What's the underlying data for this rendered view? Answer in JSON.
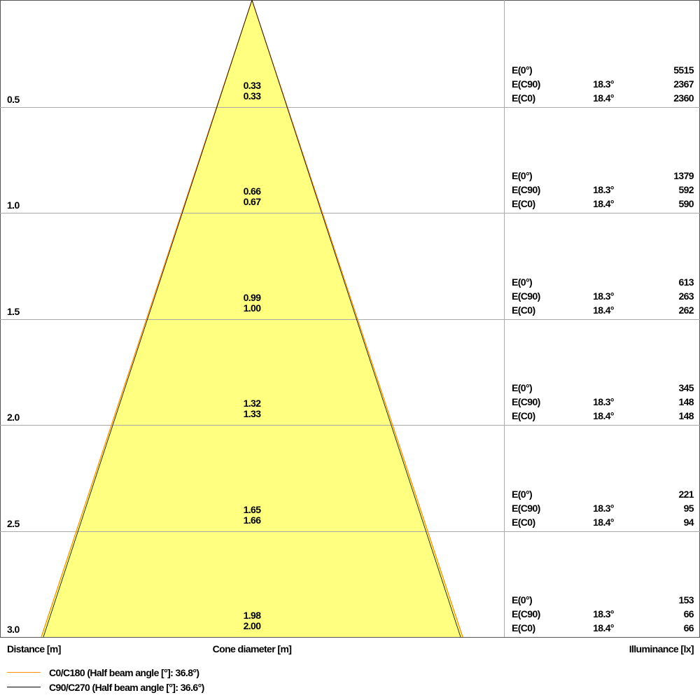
{
  "chart_data": {
    "type": "cone-diagram",
    "xlabel_left": "Distance [m]",
    "xlabel_center": "Cone diameter [m]",
    "xlabel_right": "Illuminance [lx]",
    "distances": [
      "0.5",
      "1.0",
      "1.5",
      "2.0",
      "2.5",
      "3.0"
    ],
    "rows": [
      {
        "distance": "0.5",
        "diam_c90": "0.33",
        "diam_c0": "0.33",
        "e0": "5515",
        "e_c90_angle": "18.3°",
        "e_c90": "2367",
        "e_c0_angle": "18.4°",
        "e_c0": "2360"
      },
      {
        "distance": "1.0",
        "diam_c90": "0.66",
        "diam_c0": "0.67",
        "e0": "1379",
        "e_c90_angle": "18.3°",
        "e_c90": "592",
        "e_c0_angle": "18.4°",
        "e_c0": "590"
      },
      {
        "distance": "1.5",
        "diam_c90": "0.99",
        "diam_c0": "1.00",
        "e0": "613",
        "e_c90_angle": "18.3°",
        "e_c90": "263",
        "e_c0_angle": "18.4°",
        "e_c0": "262"
      },
      {
        "distance": "2.0",
        "diam_c90": "1.32",
        "diam_c0": "1.33",
        "e0": "345",
        "e_c90_angle": "18.3°",
        "e_c90": "148",
        "e_c0_angle": "18.4°",
        "e_c0": "148"
      },
      {
        "distance": "2.5",
        "diam_c90": "1.65",
        "diam_c0": "1.66",
        "e0": "221",
        "e_c90_angle": "18.3°",
        "e_c90": "95",
        "e_c0_angle": "18.4°",
        "e_c0": "94"
      },
      {
        "distance": "3.0",
        "diam_c90": "1.98",
        "diam_c0": "2.00",
        "e0": "153",
        "e_c90_angle": "18.3°",
        "e_c90": "66",
        "e_c0_angle": "18.4°",
        "e_c0": "66"
      }
    ],
    "row_labels": {
      "e0": "E(0°)",
      "e_c90": "E(C90)",
      "e_c0": "E(C0)"
    },
    "series": [
      {
        "name": "C0/C180 (Half beam angle [°]: 36.8°)",
        "color": "#ff8c00",
        "half_angle_deg": 36.8,
        "max_diameter": 2.0
      },
      {
        "name": "C90/C270 (Half beam angle [°]: 36.6°)",
        "color": "#000000",
        "half_angle_deg": 36.6,
        "max_diameter": 1.98
      }
    ],
    "fill_color": "#ffff80",
    "grid": true
  }
}
